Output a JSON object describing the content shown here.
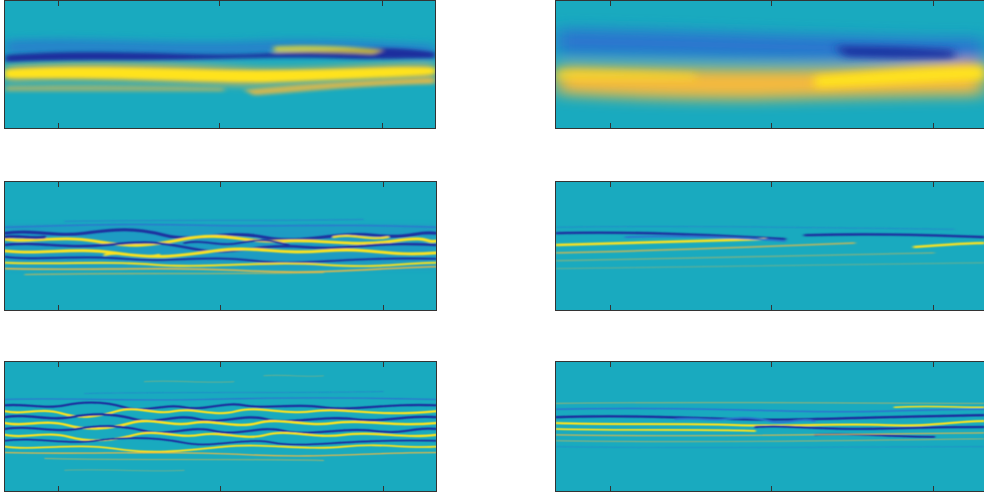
{
  "figure": {
    "colors": {
      "background": "#19aabf",
      "positive": "#ffe31a",
      "positive_mid": "#f5b93c",
      "negative": "#1b2f9e",
      "negative_mid": "#2a74cf",
      "frame": "#333333"
    },
    "panels": [
      {
        "id": "flow-field-row1-left",
        "pattern": "smooth-bands"
      },
      {
        "id": "flow-field-row1-right",
        "pattern": "broad-bands"
      },
      {
        "id": "flow-field-row2-left",
        "pattern": "turbulent-bands"
      },
      {
        "id": "flow-field-row2-right",
        "pattern": "thin-streaks"
      },
      {
        "id": "flow-field-row3-left",
        "pattern": "fine-turbulent-bands"
      },
      {
        "id": "flow-field-row3-right",
        "pattern": "fine-streaks"
      }
    ]
  }
}
